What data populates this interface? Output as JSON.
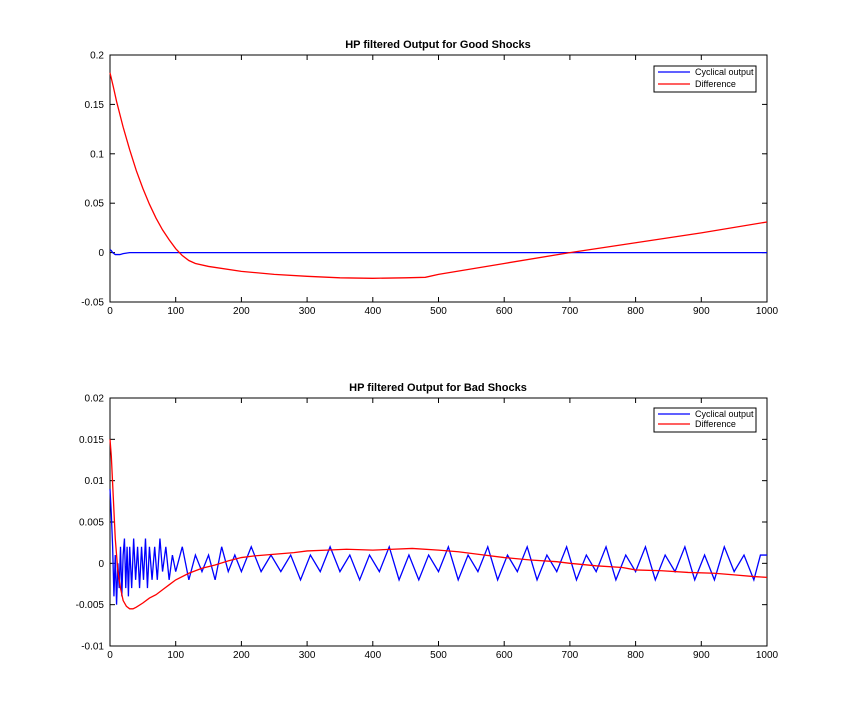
{
  "figure": {
    "background": "#ffffff",
    "axis_color": "#000000"
  },
  "chart_data": [
    {
      "type": "line",
      "title": "HP filtered Output for Good Shocks",
      "xlabel": "",
      "ylabel": "",
      "xlim": [
        0,
        1000
      ],
      "ylim": [
        -0.05,
        0.2
      ],
      "x_ticks": [
        0,
        100,
        200,
        300,
        400,
        500,
        600,
        700,
        800,
        900,
        1000
      ],
      "y_ticks": [
        -0.05,
        0,
        0.05,
        0.1,
        0.15,
        0.2
      ],
      "x_tick_labels": [
        "0",
        "100",
        "200",
        "300",
        "400",
        "500",
        "600",
        "700",
        "800",
        "900",
        "1000"
      ],
      "y_tick_labels": [
        "-0.05",
        "0",
        "0.05",
        "0.1",
        "0.15",
        "0.2"
      ],
      "grid": false,
      "legend_position": "top-right",
      "series": [
        {
          "name": "Cyclical output",
          "color": "#0000ff",
          "x": [
            0,
            2,
            4,
            6,
            8,
            10,
            15,
            20,
            30,
            40,
            60,
            100,
            200,
            300,
            400,
            500,
            600,
            700,
            800,
            900,
            1000
          ],
          "y": [
            0.003,
            0.002,
            0.0,
            -0.001,
            -0.002,
            -0.002,
            -0.002,
            -0.001,
            0.0,
            0.0,
            0.0,
            0.0,
            0.0,
            0.0,
            0.0,
            0.0,
            0.0,
            0.0,
            0.0,
            0.0,
            0.0
          ]
        },
        {
          "name": "Difference",
          "color": "#ff0000",
          "x": [
            0,
            5,
            10,
            20,
            30,
            40,
            50,
            60,
            70,
            80,
            90,
            100,
            110,
            120,
            130,
            150,
            200,
            250,
            300,
            350,
            400,
            450,
            480,
            500,
            600,
            700,
            800,
            900,
            1000
          ],
          "y": [
            0.182,
            0.168,
            0.153,
            0.127,
            0.104,
            0.083,
            0.065,
            0.049,
            0.035,
            0.023,
            0.013,
            0.004,
            -0.003,
            -0.008,
            -0.011,
            -0.014,
            -0.019,
            -0.022,
            -0.024,
            -0.0255,
            -0.026,
            -0.0255,
            -0.025,
            -0.022,
            -0.011,
            0.0,
            0.01,
            0.02,
            0.031
          ]
        }
      ]
    },
    {
      "type": "line",
      "title": "HP filtered Output for Bad Shocks",
      "xlabel": "",
      "ylabel": "",
      "xlim": [
        0,
        1000
      ],
      "ylim": [
        -0.01,
        0.02
      ],
      "x_ticks": [
        0,
        100,
        200,
        300,
        400,
        500,
        600,
        700,
        800,
        900,
        1000
      ],
      "y_ticks": [
        -0.01,
        -0.005,
        0,
        0.005,
        0.01,
        0.015,
        0.02
      ],
      "x_tick_labels": [
        "0",
        "100",
        "200",
        "300",
        "400",
        "500",
        "600",
        "700",
        "800",
        "900",
        "1000"
      ],
      "y_tick_labels": [
        "-0.01",
        "-0.005",
        "0",
        "0.005",
        "0.01",
        "0.015",
        "0.02"
      ],
      "grid": false,
      "legend_position": "top-right",
      "series": [
        {
          "name": "Cyclical output",
          "color": "#0000ff",
          "x": [
            0,
            2,
            4,
            6,
            8,
            10,
            12,
            14,
            16,
            18,
            20,
            22,
            24,
            26,
            28,
            30,
            33,
            36,
            39,
            42,
            45,
            48,
            51,
            54,
            57,
            60,
            64,
            68,
            72,
            76,
            80,
            85,
            90,
            95,
            100,
            110,
            120,
            130,
            140,
            150,
            160,
            170,
            180,
            190,
            200,
            215,
            230,
            245,
            260,
            275,
            290,
            305,
            320,
            335,
            350,
            365,
            380,
            395,
            410,
            425,
            440,
            455,
            470,
            485,
            500,
            515,
            530,
            545,
            560,
            575,
            590,
            605,
            620,
            635,
            650,
            665,
            680,
            695,
            710,
            725,
            740,
            755,
            770,
            785,
            800,
            815,
            830,
            845,
            860,
            875,
            890,
            905,
            920,
            935,
            950,
            965,
            980,
            990,
            1000
          ],
          "y": [
            0.009,
            0.006,
            0.002,
            -0.004,
            0.001,
            -0.005,
            0.0,
            -0.003,
            0.002,
            -0.004,
            0.001,
            0.003,
            -0.003,
            0.002,
            -0.004,
            0.002,
            -0.003,
            0.003,
            -0.002,
            0.002,
            -0.003,
            0.002,
            -0.002,
            0.003,
            -0.003,
            0.002,
            -0.002,
            0.002,
            -0.002,
            0.003,
            -0.001,
            0.002,
            -0.002,
            0.001,
            -0.001,
            0.002,
            -0.002,
            0.001,
            -0.001,
            0.001,
            -0.002,
            0.002,
            -0.001,
            0.001,
            -0.001,
            0.002,
            -0.001,
            0.001,
            -0.001,
            0.001,
            -0.002,
            0.001,
            -0.001,
            0.002,
            -0.001,
            0.001,
            -0.002,
            0.001,
            -0.001,
            0.002,
            -0.002,
            0.001,
            -0.002,
            0.001,
            -0.001,
            0.002,
            -0.002,
            0.001,
            -0.001,
            0.002,
            -0.002,
            0.001,
            -0.001,
            0.002,
            -0.002,
            0.001,
            -0.001,
            0.002,
            -0.002,
            0.001,
            -0.001,
            0.002,
            -0.002,
            0.001,
            -0.001,
            0.002,
            -0.002,
            0.001,
            -0.001,
            0.002,
            -0.002,
            0.001,
            -0.002,
            0.002,
            -0.001,
            0.001,
            -0.002,
            0.001,
            0.001
          ]
        },
        {
          "name": "Difference",
          "color": "#ff0000",
          "x": [
            0,
            2,
            5,
            8,
            12,
            16,
            20,
            25,
            30,
            35,
            40,
            50,
            60,
            70,
            80,
            90,
            100,
            120,
            140,
            160,
            180,
            200,
            220,
            250,
            280,
            300,
            330,
            360,
            400,
            430,
            460,
            500,
            530,
            560,
            600,
            640,
            680,
            700,
            740,
            780,
            800,
            840,
            880,
            920,
            950,
            980,
            1000
          ],
          "y": [
            0.015,
            0.013,
            0.008,
            0.003,
            -0.001,
            -0.003,
            -0.0045,
            -0.0052,
            -0.0055,
            -0.0055,
            -0.0053,
            -0.0048,
            -0.0042,
            -0.0038,
            -0.0032,
            -0.0026,
            -0.002,
            -0.0012,
            -0.0006,
            -0.0002,
            0.0003,
            0.0007,
            0.0009,
            0.0011,
            0.0013,
            0.0015,
            0.0016,
            0.0017,
            0.0016,
            0.0017,
            0.0018,
            0.0016,
            0.0014,
            0.0011,
            0.0007,
            0.0004,
            0.0002,
            0.0,
            -0.0003,
            -0.0005,
            -0.0008,
            -0.0009,
            -0.0011,
            -0.0012,
            -0.0014,
            -0.0016,
            -0.0017
          ]
        }
      ]
    }
  ]
}
